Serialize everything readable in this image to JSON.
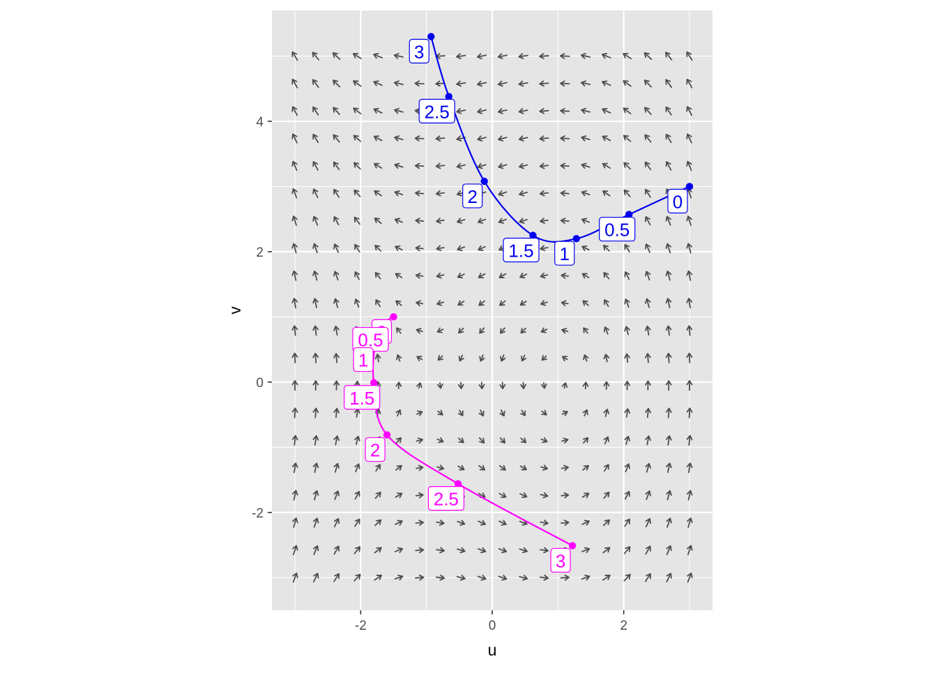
{
  "chart_data": {
    "type": "scatter",
    "subtype": "phase-portrait-vector-field-with-trajectories",
    "xlabel": "u",
    "ylabel": "v",
    "xlim": [
      -3.35,
      3.35
    ],
    "ylim": [
      -3.5,
      5.7
    ],
    "x_ticks": [
      {
        "value": -2,
        "label": "-2"
      },
      {
        "value": 0,
        "label": "0"
      },
      {
        "value": 2,
        "label": "2"
      }
    ],
    "y_ticks": [
      {
        "value": -2,
        "label": "-2"
      },
      {
        "value": 0,
        "label": "0"
      },
      {
        "value": 2,
        "label": "2"
      },
      {
        "value": 4,
        "label": "4"
      }
    ],
    "grid": true,
    "panel_background": "#e5e5e5",
    "grid_color": "#ffffff",
    "legend": "none",
    "vector_field": {
      "u_range": [
        -3,
        3
      ],
      "v_range": [
        -3,
        5
      ],
      "grid_count": 20,
      "color": "#4d4d4d",
      "system": "du/dt = -v, dv/dt = u^2 - 1 (approximate)"
    },
    "series": [
      {
        "color": "#0000ee",
        "points": [
          {
            "t": "0",
            "u": 3.0,
            "v": 3.0
          },
          {
            "t": "0.5",
            "u": 2.08,
            "v": 2.57
          },
          {
            "t": "1",
            "u": 1.28,
            "v": 2.2
          },
          {
            "t": "1.5",
            "u": 0.62,
            "v": 2.25
          },
          {
            "t": "2",
            "u": -0.12,
            "v": 3.08
          },
          {
            "t": "2.5",
            "u": -0.66,
            "v": 4.38
          },
          {
            "t": "3",
            "u": -0.93,
            "v": 5.3
          }
        ]
      },
      {
        "color": "#ff00ff",
        "points": [
          {
            "t": "0",
            "u": -1.5,
            "v": 1.0
          },
          {
            "t": "0.5",
            "u": -1.67,
            "v": 0.88
          },
          {
            "t": "1",
            "u": -1.78,
            "v": 0.57
          },
          {
            "t": "1.5",
            "u": -1.8,
            "v": -0.01
          },
          {
            "t": "2",
            "u": -1.6,
            "v": -0.81
          },
          {
            "t": "2.5",
            "u": -0.52,
            "v": -1.56
          },
          {
            "t": "3",
            "u": 1.22,
            "v": -2.51
          }
        ]
      }
    ]
  }
}
